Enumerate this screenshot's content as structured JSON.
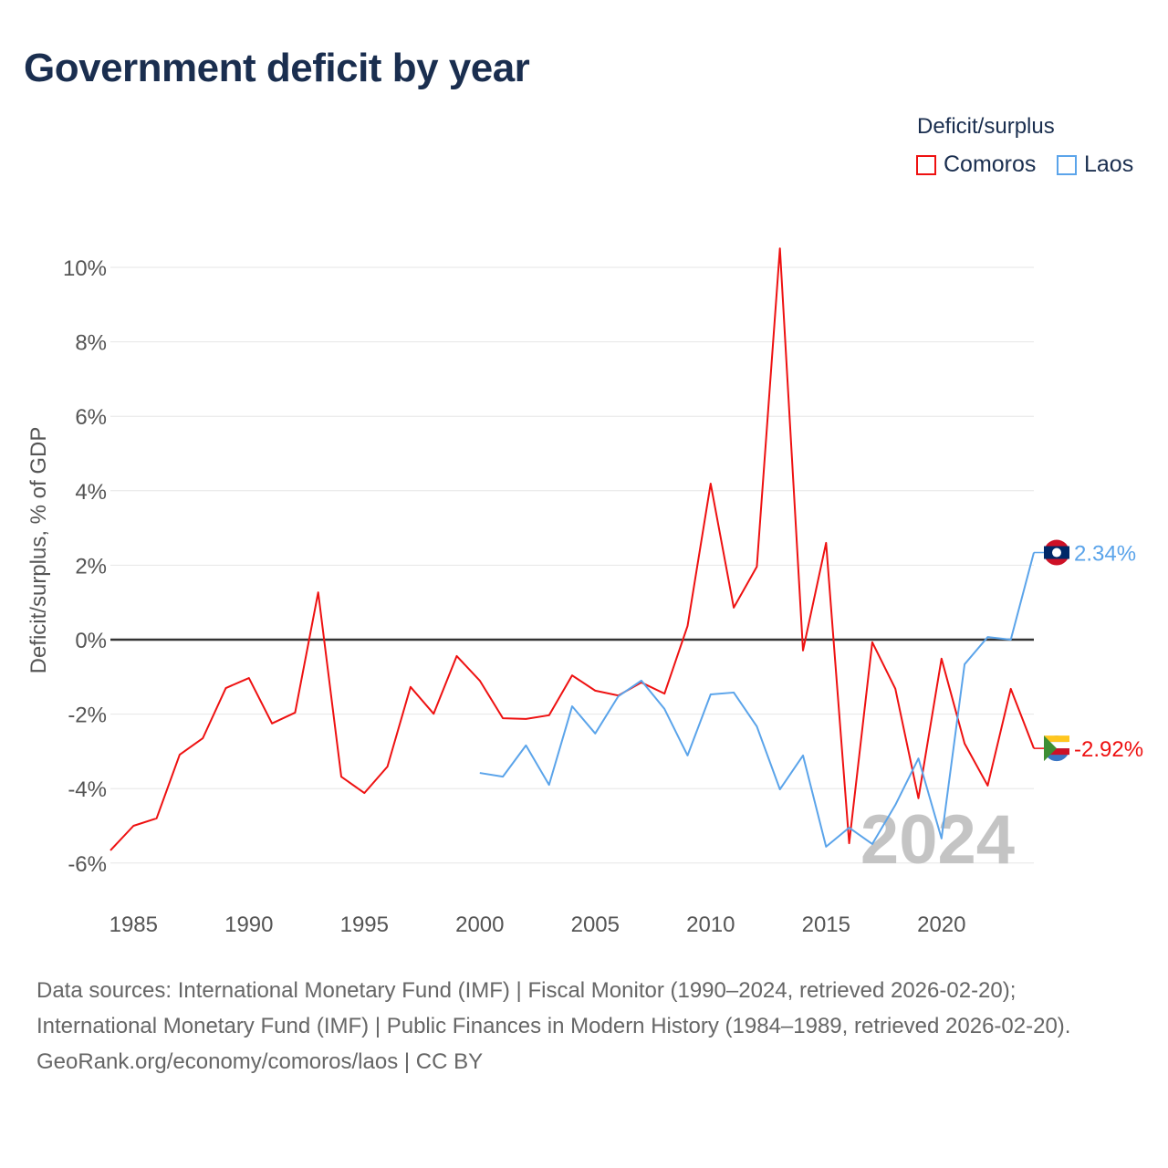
{
  "title": "Government deficit by year",
  "legend": {
    "title": "Deficit/surplus",
    "items": [
      {
        "name": "Comoros",
        "color": "#ee1111"
      },
      {
        "name": "Laos",
        "color": "#5ba4ea"
      }
    ]
  },
  "watermark_year": "2024",
  "end_labels": {
    "Laos": "2.34%",
    "Comoros": "-2.92%"
  },
  "footer": {
    "sources": "Data sources: International Monetary Fund (IMF) | Fiscal Monitor (1990–2024, retrieved 2026-02-20); International Monetary Fund (IMF) | Public Finances in Modern History (1984–1989, retrieved 2026-02-20).",
    "credit": "GeoRank.org/economy/comoros/laos | CC BY"
  },
  "chart_data": {
    "type": "line",
    "title": "Government deficit by year",
    "xlabel": "",
    "ylabel": "Deficit/surplus, % of GDP",
    "xlim": [
      1984,
      2024
    ],
    "ylim": [
      -7,
      11
    ],
    "x_ticks": [
      1985,
      1990,
      1995,
      2000,
      2005,
      2010,
      2015,
      2020
    ],
    "y_ticks": [
      -6,
      -4,
      -2,
      0,
      2,
      4,
      6,
      8,
      10
    ],
    "y_tick_labels": [
      "-6%",
      "-4%",
      "-2%",
      "0%",
      "2%",
      "4%",
      "6%",
      "8%",
      "10%"
    ],
    "grid": true,
    "legend_position": "top-right",
    "series": [
      {
        "name": "Comoros",
        "color": "#ee1111",
        "start_year": 1984,
        "values": [
          -5.66,
          -5.0,
          -4.8,
          -3.09,
          -2.65,
          -1.3,
          -1.03,
          -2.25,
          -1.96,
          1.27,
          -3.68,
          -4.12,
          -3.41,
          -1.27,
          -1.99,
          -0.44,
          -1.1,
          -2.11,
          -2.13,
          -2.03,
          -0.96,
          -1.37,
          -1.5,
          -1.15,
          -1.45,
          0.37,
          4.19,
          0.86,
          1.96,
          10.51,
          -0.29,
          2.6,
          -5.47,
          -0.07,
          -1.32,
          -4.26,
          -0.51,
          -2.79,
          -3.92,
          -1.32,
          -2.92
        ]
      },
      {
        "name": "Laos",
        "color": "#5ba4ea",
        "start_year": 2000,
        "values": [
          -3.58,
          -3.68,
          -2.84,
          -3.9,
          -1.79,
          -2.52,
          -1.52,
          -1.1,
          -1.86,
          -3.11,
          -1.47,
          -1.42,
          -2.33,
          -4.02,
          -3.11,
          -5.56,
          -5.05,
          -5.49,
          -4.44,
          -3.19,
          -5.34,
          -0.66,
          0.07,
          0.0,
          2.34
        ]
      }
    ]
  }
}
